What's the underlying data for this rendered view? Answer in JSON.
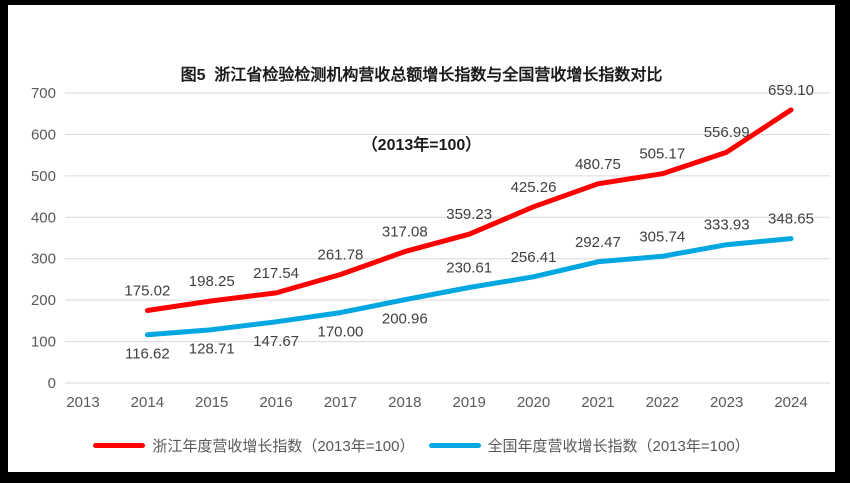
{
  "title": {
    "line1": "图5  浙江省检验检测机构营收总额增长指数与全国营收增长指数对比",
    "line2": "（2013年=100）"
  },
  "chart_data": {
    "type": "line",
    "title": "图5 浙江省检验检测机构营收总额增长指数与全国营收增长指数对比",
    "subtitle": "（2013年=100）",
    "categories": [
      "2013",
      "2014",
      "2015",
      "2016",
      "2017",
      "2018",
      "2019",
      "2020",
      "2021",
      "2022",
      "2023",
      "2024"
    ],
    "series": [
      {
        "name": "浙江年度营收增长指数（2013年=100）",
        "color": "#FE0000",
        "start_index": 1,
        "values": [
          175.02,
          198.25,
          217.54,
          261.78,
          317.08,
          359.23,
          425.26,
          480.75,
          505.17,
          556.99,
          659.1
        ],
        "label_side": "above"
      },
      {
        "name": "全国年度营收增长指数（2013年=100）",
        "color": "#00A7E1",
        "start_index": 1,
        "values": [
          116.62,
          128.71,
          147.67,
          170.0,
          200.96,
          230.61,
          256.41,
          292.47,
          305.74,
          333.93,
          348.65
        ],
        "label_sides": [
          "below",
          "below",
          "below",
          "below",
          "below",
          "above",
          "above",
          "above",
          "above",
          "above",
          "above"
        ]
      }
    ],
    "ylim": [
      0,
      700
    ],
    "ytick_step": 100,
    "yticks": [
      "0",
      "100",
      "200",
      "300",
      "400",
      "500",
      "600",
      "700"
    ],
    "xlabel": "",
    "ylabel": "",
    "grid": "horizontal",
    "legend_position": "bottom",
    "colors": {
      "gridline": "#D9D9D9",
      "axis_tick_label": "#595959",
      "data_label": "#404040",
      "title_text": "#1a1a1a",
      "frame_border": "#000000",
      "plot_background": "#FFFFFF"
    }
  }
}
